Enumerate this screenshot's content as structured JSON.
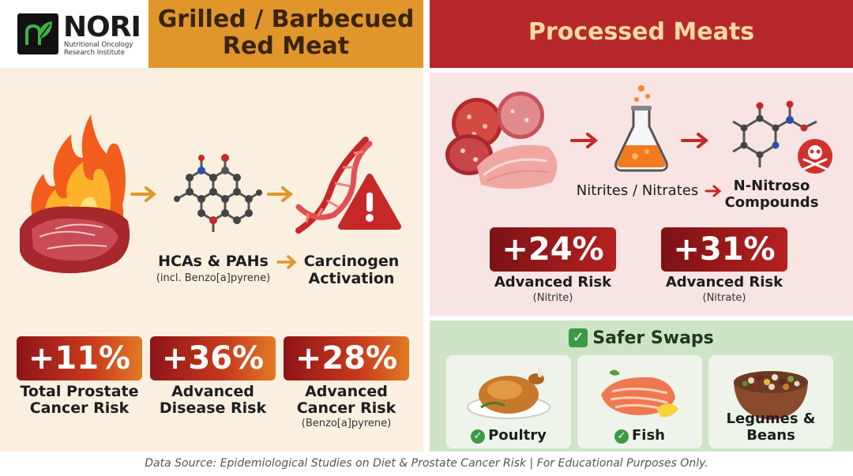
{
  "logo": {
    "name": "NORI",
    "subtitle": "Nutritional Oncology Research Institute"
  },
  "left": {
    "title_line1": "Grilled / Barbecued",
    "title_line2": "Red Meat",
    "hcas_label": "HCAs & PAHs",
    "hcas_sub": "(incl. Benzo[a]pyrene)",
    "carcinogen_line1": "Carcinogen",
    "carcinogen_line2": "Activation",
    "stats": [
      {
        "value": "+11%",
        "line1": "Total Prostate",
        "line2": "Cancer Risk",
        "note": ""
      },
      {
        "value": "+36%",
        "line1": "Advanced",
        "line2": "Disease Risk",
        "note": ""
      },
      {
        "value": "+28%",
        "line1": "Advanced",
        "line2": "Cancer Risk",
        "note": "(Benzo[a]pyrene)"
      }
    ]
  },
  "right": {
    "title": "Processed Meats",
    "nitrites_label": "Nitrites / Nitrates",
    "nitroso_line1": "N-Nitroso",
    "nitroso_line2": "Compounds",
    "stats": [
      {
        "value": "+24%",
        "label": "Advanced Risk",
        "note": "(Nitrite)"
      },
      {
        "value": "+31%",
        "label": "Advanced Risk",
        "note": "(Nitrate)"
      }
    ],
    "swaps_title": "Safer Swaps",
    "swaps": [
      {
        "label": "Poultry",
        "checked": true
      },
      {
        "label": "Fish",
        "checked": true
      },
      {
        "label": "Legumes & Beans",
        "checked": false
      }
    ]
  },
  "footer": "Data Source: Epidemiological Studies on Diet & Prostate Cancer Risk | For Educational Purposes Only.",
  "colors": {
    "left_header": "#e0962b",
    "right_header": "#b7282a",
    "stat_red": "#b52020",
    "swap_green": "#3c9a46"
  }
}
